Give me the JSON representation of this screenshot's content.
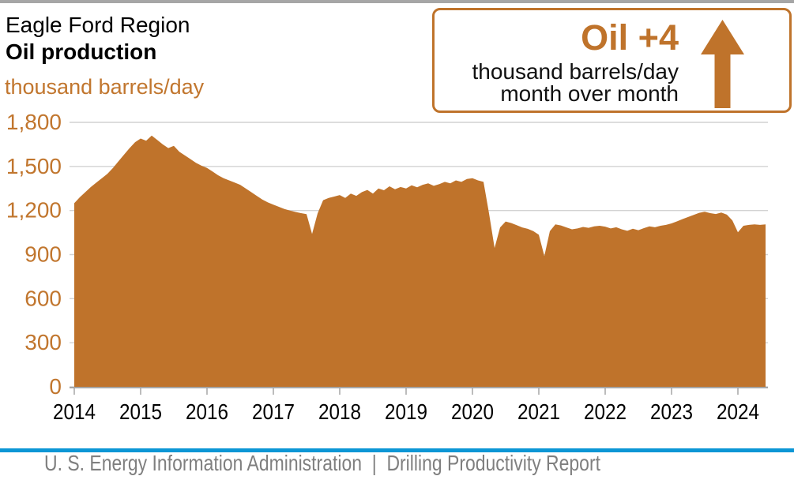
{
  "header": {
    "region_title": "Eagle Ford Region",
    "chart_title": "Oil production",
    "unit_label": "thousand barrels/day"
  },
  "callout": {
    "headline": "Oil +4",
    "unit_line": "thousand barrels/day",
    "period_line": "month over month",
    "direction": "up"
  },
  "footer": {
    "source_text": "U. S. Energy Information Administration  |  Drilling Productivity Report"
  },
  "colors": {
    "accent_fill": "#bf732b",
    "accent_text": "#c1762e",
    "grid": "#d2d2d2",
    "axis": "#a6a6a6",
    "top_bar": "#a6a6a6",
    "blue_rule": "#0c96d5",
    "footer_text": "#7f7f7f",
    "x_label": "#000000"
  },
  "chart_data": {
    "type": "area",
    "title": "Eagle Ford Region Oil production",
    "ylabel": "thousand barrels/day",
    "unit": "thousand barrels/day",
    "frequency": "monthly",
    "x_start": "2014-01",
    "x_end": "2024-06",
    "ylim": [
      0,
      1800
    ],
    "ytick_step": 300,
    "ytick_labels": [
      "0",
      "300",
      "600",
      "900",
      "1,200",
      "1,500",
      "1,800"
    ],
    "xtick_labels": [
      "2014",
      "2015",
      "2016",
      "2017",
      "2018",
      "2019",
      "2020",
      "2021",
      "2022",
      "2023",
      "2024"
    ],
    "grid": true,
    "legend": false,
    "series": [
      {
        "name": "Oil production",
        "values": [
          1250,
          1290,
          1325,
          1360,
          1390,
          1420,
          1450,
          1490,
          1535,
          1580,
          1625,
          1665,
          1690,
          1675,
          1710,
          1680,
          1650,
          1625,
          1640,
          1600,
          1575,
          1550,
          1525,
          1505,
          1490,
          1465,
          1440,
          1420,
          1405,
          1390,
          1375,
          1350,
          1325,
          1300,
          1275,
          1255,
          1240,
          1225,
          1210,
          1200,
          1190,
          1182,
          1175,
          1040,
          1180,
          1270,
          1285,
          1295,
          1305,
          1285,
          1315,
          1300,
          1325,
          1340,
          1315,
          1350,
          1338,
          1365,
          1345,
          1360,
          1350,
          1372,
          1358,
          1375,
          1385,
          1368,
          1380,
          1395,
          1385,
          1405,
          1395,
          1415,
          1420,
          1405,
          1395,
          1180,
          945,
          1085,
          1125,
          1115,
          1100,
          1085,
          1075,
          1060,
          1035,
          890,
          1060,
          1105,
          1098,
          1085,
          1072,
          1078,
          1088,
          1082,
          1092,
          1096,
          1090,
          1078,
          1086,
          1072,
          1062,
          1076,
          1066,
          1080,
          1092,
          1086,
          1096,
          1102,
          1112,
          1126,
          1142,
          1156,
          1170,
          1184,
          1192,
          1182,
          1176,
          1186,
          1172,
          1132,
          1052,
          1096,
          1102,
          1106,
          1102,
          1106
        ]
      }
    ],
    "month_over_month_change": 4
  }
}
